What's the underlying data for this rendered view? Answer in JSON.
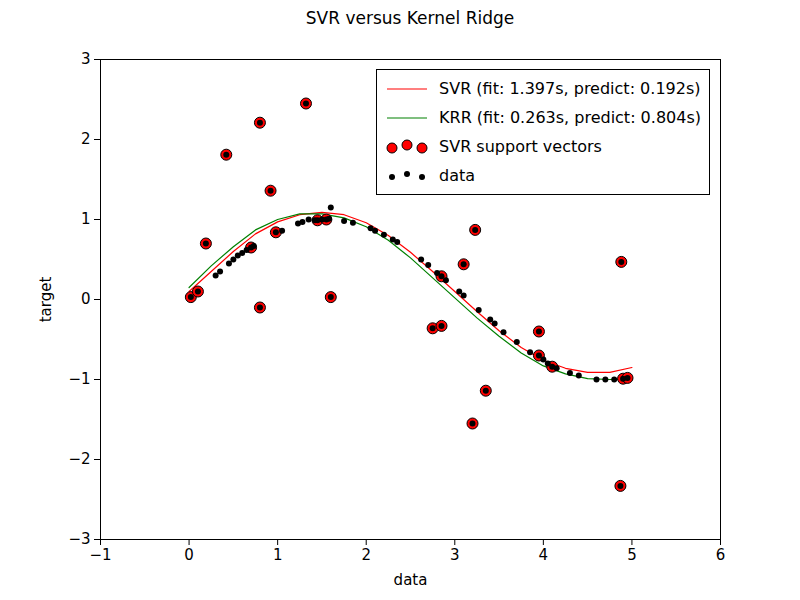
{
  "chart_data": {
    "type": "scatter",
    "title": "SVR versus Kernel Ridge",
    "x_label": "data",
    "y_label": "target",
    "xlim": [
      -1,
      6
    ],
    "xticks": [
      -1,
      0,
      1,
      2,
      3,
      4,
      5,
      6
    ],
    "ylim": [
      -3,
      3
    ],
    "yticks": [
      -3,
      -2,
      -1,
      0,
      1,
      2,
      3
    ],
    "legend": "upper right",
    "grid": false,
    "series": [
      {
        "name": "SVR (fit: 1.397s, predict: 0.192s)",
        "type": "line",
        "color": "#ff0000",
        "x": [
          0,
          0.25,
          0.5,
          0.75,
          1,
          1.25,
          1.5,
          1.75,
          2,
          2.25,
          2.5,
          2.75,
          3,
          3.25,
          3.5,
          3.75,
          4,
          4.25,
          4.5,
          4.75,
          5
        ],
        "values": [
          0.1,
          0.35,
          0.6,
          0.82,
          0.97,
          1.06,
          1.09,
          1.06,
          0.96,
          0.8,
          0.59,
          0.35,
          0.1,
          -0.15,
          -0.39,
          -0.6,
          -0.76,
          -0.86,
          -0.91,
          -0.91,
          -0.85
        ]
      },
      {
        "name": "KRR (fit: 0.263s, predict: 0.804s)",
        "type": "line",
        "color": "#008000",
        "x": [
          0,
          0.25,
          0.5,
          0.75,
          1,
          1.25,
          1.5,
          1.75,
          2,
          2.25,
          2.5,
          2.75,
          3,
          3.25,
          3.5,
          3.75,
          4,
          4.25,
          4.5,
          4.75,
          5
        ],
        "values": [
          0.15,
          0.42,
          0.66,
          0.87,
          1.0,
          1.07,
          1.07,
          1.02,
          0.91,
          0.74,
          0.52,
          0.27,
          0.02,
          -0.23,
          -0.46,
          -0.67,
          -0.83,
          -0.93,
          -0.99,
          -1.0,
          -0.99
        ]
      },
      {
        "name": "SVR support vectors",
        "type": "scatter",
        "color": "#ff0000",
        "x": [
          0.02,
          0.1,
          0.19,
          0.42,
          0.7,
          0.8,
          0.8,
          0.92,
          0.98,
          1.32,
          1.45,
          1.55,
          1.6,
          2.75,
          2.85,
          2.85,
          3.1,
          3.2,
          3.23,
          3.35,
          3.95,
          3.95,
          4.1,
          4.87,
          4.88,
          4.9,
          4.95
        ],
        "values": [
          0.03,
          0.1,
          0.7,
          1.81,
          0.65,
          -0.1,
          2.21,
          1.36,
          0.84,
          2.45,
          0.99,
          1.0,
          0.03,
          -0.36,
          -0.33,
          0.29,
          0.44,
          -1.55,
          0.87,
          -1.14,
          -0.4,
          -0.7,
          -0.84,
          -2.33,
          0.47,
          -0.99,
          -0.98
        ]
      },
      {
        "name": "data",
        "type": "scatter",
        "color": "#000000",
        "x": [
          0.02,
          0.1,
          0.19,
          0.3,
          0.35,
          0.42,
          0.45,
          0.5,
          0.55,
          0.6,
          0.65,
          0.7,
          0.73,
          0.8,
          0.8,
          0.92,
          0.98,
          1.05,
          1.23,
          1.28,
          1.32,
          1.35,
          1.42,
          1.45,
          1.5,
          1.55,
          1.58,
          1.6,
          1.6,
          1.75,
          1.85,
          2.05,
          2.1,
          2.2,
          2.3,
          2.35,
          2.62,
          2.7,
          2.75,
          2.8,
          2.85,
          2.85,
          2.9,
          3.05,
          3.1,
          3.1,
          3.2,
          3.23,
          3.27,
          3.35,
          3.4,
          3.45,
          3.55,
          3.7,
          3.85,
          3.95,
          3.95,
          4.0,
          4.05,
          4.1,
          4.15,
          4.3,
          4.4,
          4.6,
          4.7,
          4.8,
          4.87,
          4.88,
          4.9,
          4.95
        ],
        "values": [
          0.03,
          0.1,
          0.7,
          0.3,
          0.35,
          1.81,
          0.45,
          0.5,
          0.55,
          0.58,
          0.62,
          0.65,
          0.67,
          -0.1,
          2.21,
          1.36,
          0.84,
          0.86,
          0.95,
          0.97,
          2.45,
          1.0,
          0.99,
          0.99,
          1.0,
          1.0,
          1.01,
          1.15,
          0.03,
          0.98,
          0.96,
          0.89,
          0.86,
          0.81,
          0.75,
          0.72,
          0.5,
          0.43,
          -0.36,
          0.33,
          -0.33,
          0.29,
          0.24,
          0.1,
          0.44,
          0.05,
          -1.55,
          0.87,
          -0.13,
          -1.14,
          -0.25,
          -0.3,
          -0.41,
          -0.53,
          -0.66,
          -0.4,
          -0.7,
          -0.75,
          -0.8,
          -0.84,
          -0.86,
          -0.92,
          -0.95,
          -1.0,
          -1.0,
          -1.0,
          -2.33,
          0.47,
          -0.99,
          -0.98
        ]
      }
    ]
  }
}
